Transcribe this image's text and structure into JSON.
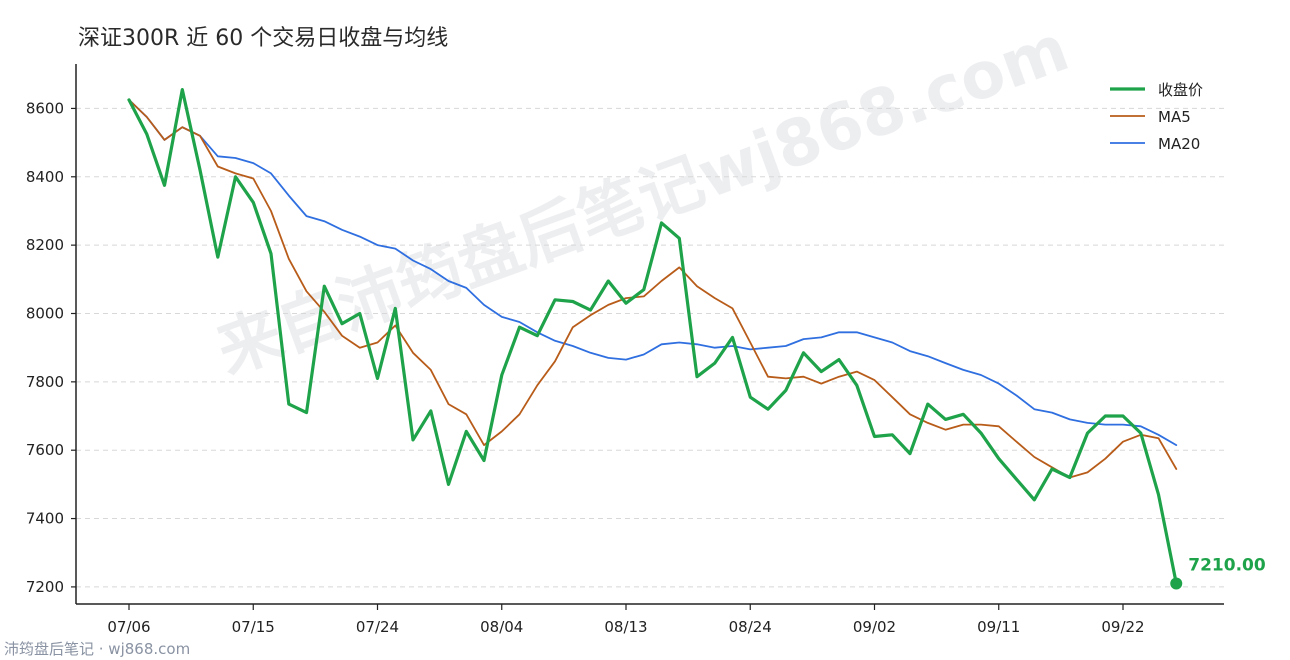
{
  "chart_data": {
    "type": "line",
    "title": "深证300R 近 60 个交易日收盘与均线",
    "x_tick_labels": [
      "07/06",
      "07/15",
      "07/24",
      "08/04",
      "08/13",
      "08/24",
      "09/02",
      "09/11",
      "09/22"
    ],
    "x_tick_index": [
      0,
      7,
      14,
      21,
      28,
      35,
      42,
      49,
      56
    ],
    "ylim": [
      7150,
      8730
    ],
    "yticks": [
      7200,
      7400,
      7600,
      7800,
      8000,
      8200,
      8400,
      8600
    ],
    "grid": true,
    "legend_position": "top-right",
    "last_value_label": "7210.00",
    "series": [
      {
        "name": "收盘价",
        "color": "#1fa34a",
        "values": [
          8625,
          8525,
          8375,
          8655,
          8420,
          8165,
          8400,
          8325,
          8175,
          7735,
          7710,
          8080,
          7970,
          8000,
          7810,
          8015,
          7630,
          7715,
          7500,
          7655,
          7570,
          7820,
          7960,
          7935,
          8040,
          8035,
          8010,
          8095,
          8030,
          8070,
          8265,
          8220,
          7815,
          7855,
          7930,
          7755,
          7720,
          7775,
          7885,
          7830,
          7865,
          7790,
          7640,
          7645,
          7590,
          7735,
          7690,
          7705,
          7650,
          7575,
          7515,
          7455,
          7545,
          7520,
          7650,
          7700,
          7700,
          7650,
          7470,
          7210
        ]
      },
      {
        "name": "MA5",
        "color": "#b85c1a",
        "values": [
          8625,
          8575,
          8508,
          8545,
          8520,
          8430,
          8410,
          8395,
          8300,
          8160,
          8065,
          8005,
          7935,
          7900,
          7915,
          7965,
          7885,
          7835,
          7735,
          7705,
          7615,
          7655,
          7705,
          7790,
          7860,
          7960,
          7995,
          8025,
          8045,
          8050,
          8095,
          8135,
          8080,
          8045,
          8015,
          7915,
          7815,
          7810,
          7815,
          7795,
          7815,
          7830,
          7805,
          7755,
          7705,
          7680,
          7660,
          7675,
          7675,
          7670,
          7625,
          7580,
          7550,
          7520,
          7535,
          7575,
          7625,
          7645,
          7635,
          7545
        ]
      },
      {
        "name": "MA20",
        "color": "#2f6fe0",
        "values": [
          8625,
          8575,
          8508,
          8545,
          8520,
          8460,
          8455,
          8440,
          8410,
          8345,
          8285,
          8270,
          8245,
          8225,
          8200,
          8190,
          8155,
          8130,
          8095,
          8075,
          8025,
          7990,
          7975,
          7945,
          7920,
          7905,
          7885,
          7870,
          7865,
          7880,
          7910,
          7915,
          7910,
          7900,
          7905,
          7895,
          7900,
          7905,
          7925,
          7930,
          7945,
          7945,
          7930,
          7915,
          7890,
          7875,
          7855,
          7835,
          7820,
          7795,
          7760,
          7720,
          7710,
          7690,
          7680,
          7675,
          7675,
          7670,
          7645,
          7615
        ]
      }
    ]
  },
  "watermark": "来自沛筠盘后笔记wj868.com",
  "footer": "沛筠盘后笔记 · wj868.com"
}
